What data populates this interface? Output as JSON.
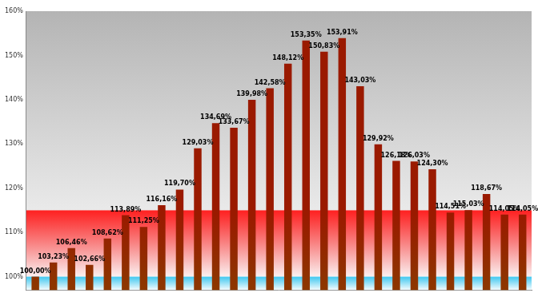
{
  "chart_data": {
    "type": "bar",
    "categories": [
      null,
      null,
      null,
      null,
      null,
      null,
      null,
      null,
      null,
      null,
      null,
      null,
      null,
      null,
      null,
      null,
      null,
      null,
      null,
      null,
      null,
      null,
      null,
      null,
      null,
      null,
      null,
      null
    ],
    "values": [
      100.0,
      103.23,
      106.46,
      102.66,
      108.62,
      113.89,
      111.25,
      116.16,
      119.7,
      129.03,
      134.69,
      133.67,
      139.98,
      142.58,
      148.12,
      153.35,
      150.83,
      153.91,
      143.03,
      129.92,
      126.18,
      126.03,
      124.3,
      114.51,
      115.03,
      118.67,
      114.05,
      114.05
    ],
    "value_labels": [
      "100,00%",
      "103,23%",
      "106,46%",
      "102,66%",
      "108,62%",
      "113,89%",
      "111,25%",
      "116,16%",
      "119,70%",
      "129,03%",
      "134,69%",
      "133,67%",
      "139,98%",
      "142,58%",
      "148,12%",
      "153,35%",
      "150,83%",
      "153,91%",
      "143,03%",
      "129,92%",
      "126,18%",
      "126,03%",
      "124,30%",
      "114,51%",
      "115,03%",
      "118,67%",
      "114,05%",
      "114,05%"
    ],
    "color": "#9a1a00",
    "bands": [
      {
        "from": 100,
        "to": 115,
        "color": "#ff2020"
      },
      {
        "from": 97,
        "to": 100,
        "color": "#40c8f0"
      }
    ],
    "ylim": [
      97,
      160
    ],
    "yticks": [
      {
        "value": 100,
        "label": "100%"
      },
      {
        "value": 110,
        "label": "110%"
      },
      {
        "value": 120,
        "label": "120%"
      },
      {
        "value": 130,
        "label": "130%"
      },
      {
        "value": 140,
        "label": "140%"
      },
      {
        "value": 150,
        "label": "150%"
      },
      {
        "value": 160,
        "label": "160%"
      }
    ],
    "grid": false,
    "data_labels": true,
    "tick_labels": "y"
  }
}
